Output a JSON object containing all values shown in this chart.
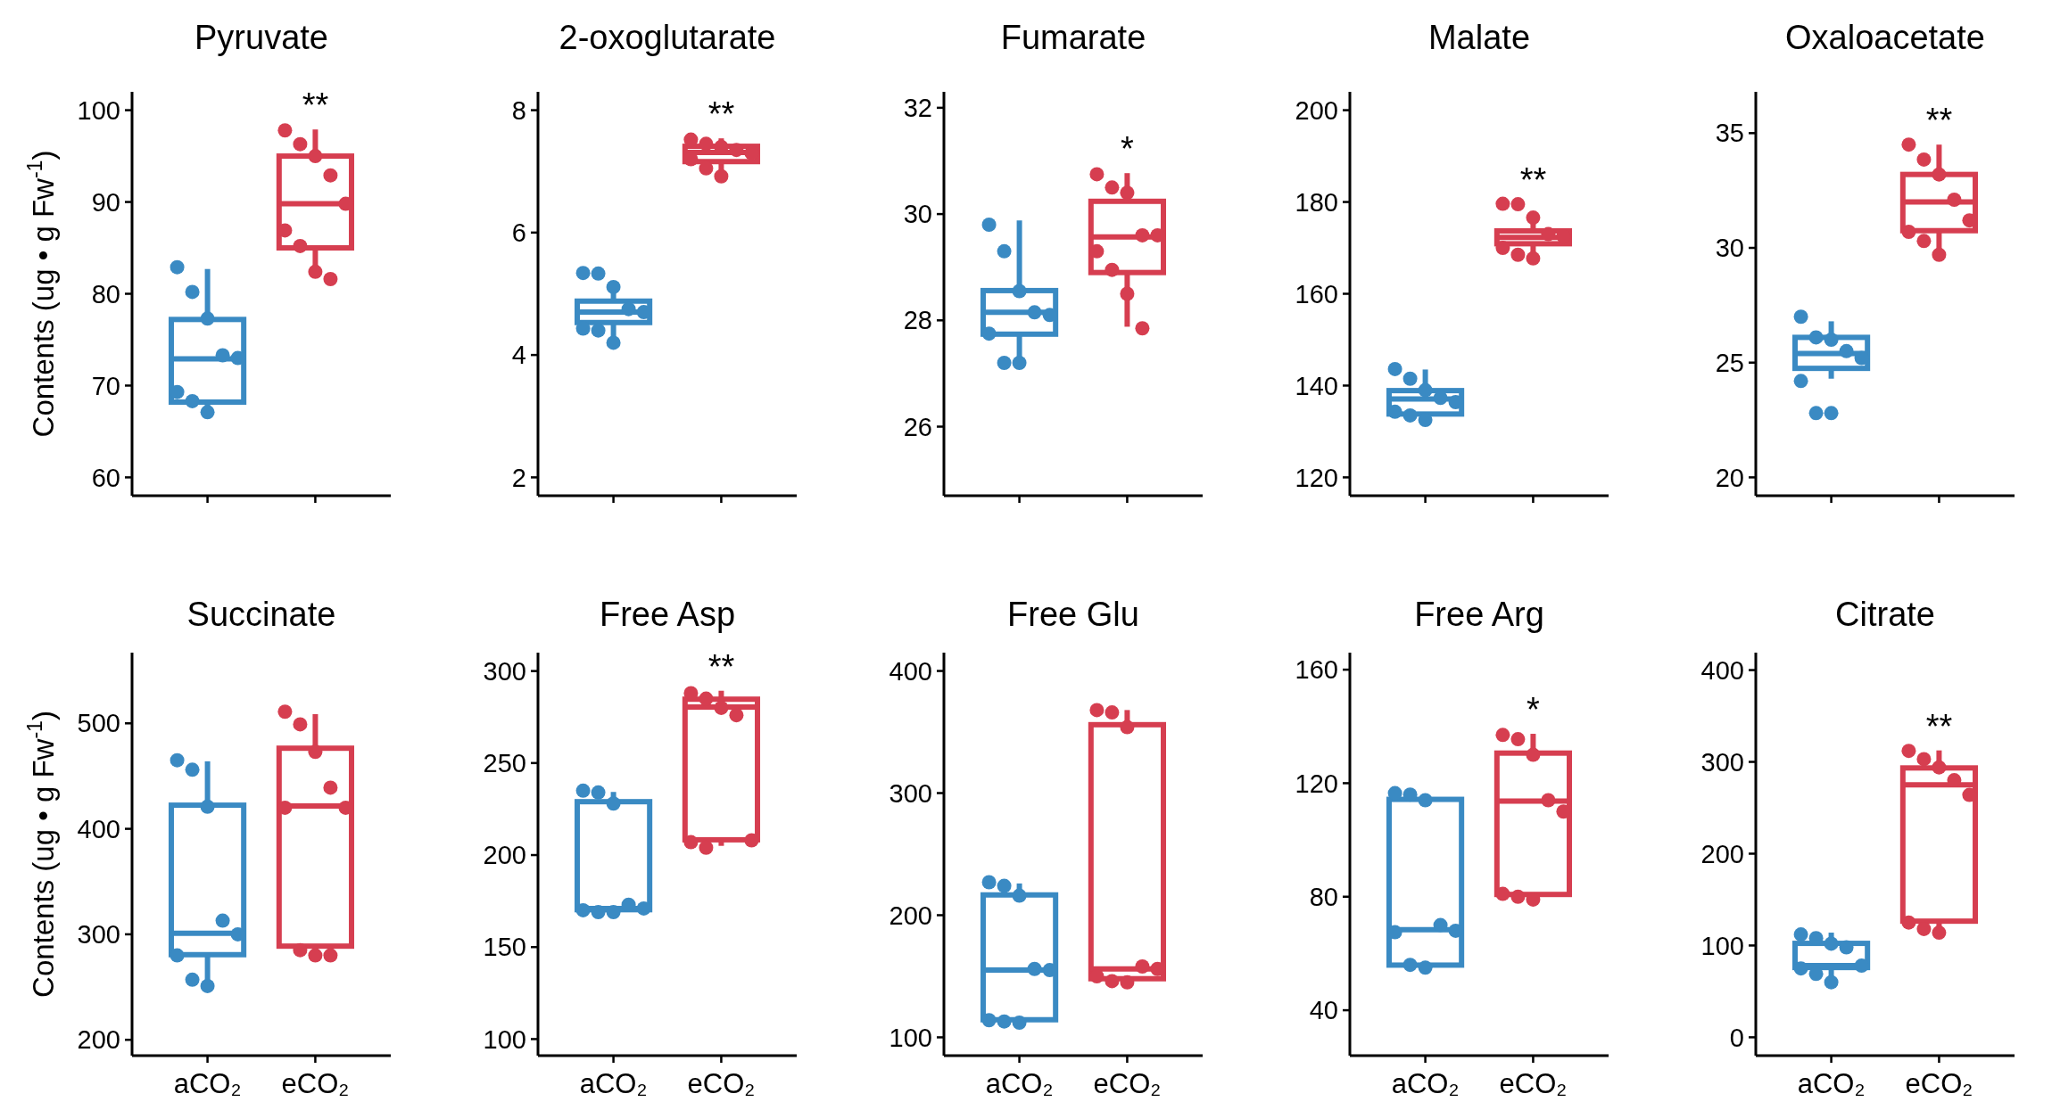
{
  "chart_data": [
    {
      "type": "box",
      "title": "Pyruvate",
      "ylabel": "Contents (ug • g Fw$^{-1}$)",
      "categories": [
        "aCO₂",
        "eCO₂"
      ],
      "colors": [
        "#3a8ac3",
        "#d63e50"
      ],
      "ylim": [
        58,
        102
      ],
      "yticks": [
        60,
        70,
        80,
        90,
        100
      ],
      "tick_labels": "y",
      "marker": "circle",
      "annotations": [
        "**"
      ],
      "boxes": [
        {
          "low": 67.1,
          "q1": 68.2,
          "median": 72.9,
          "q3": 77.2,
          "high": 82.7
        },
        {
          "low": 81.9,
          "q1": 85.0,
          "median": 89.8,
          "q3": 95.0,
          "high": 97.9
        }
      ],
      "series": [
        {
          "type": "scatter",
          "color": "#3a8ac3",
          "x": [
            "aCO₂",
            "aCO₂",
            "aCO₂",
            "aCO₂",
            "aCO₂",
            "aCO₂",
            "aCO₂",
            "aCO₂"
          ],
          "values": [
            82.9,
            80.2,
            77.3,
            73.3,
            73.0,
            69.3,
            68.3,
            67.1
          ]
        },
        {
          "type": "scatter",
          "color": "#d63e50",
          "x": [
            "eCO₂",
            "eCO₂",
            "eCO₂",
            "eCO₂",
            "eCO₂",
            "eCO₂",
            "eCO₂",
            "eCO₂",
            "eCO₂"
          ],
          "values": [
            97.8,
            96.3,
            95.0,
            92.9,
            89.8,
            86.9,
            85.2,
            82.4,
            81.6
          ]
        }
      ]
    },
    {
      "type": "box",
      "title": "2-oxoglutarate",
      "categories": [
        "aCO₂",
        "eCO₂"
      ],
      "colors": [
        "#3a8ac3",
        "#d63e50"
      ],
      "ylim": [
        1.7,
        8.3
      ],
      "yticks": [
        2,
        4,
        6,
        8
      ],
      "tick_labels": "y",
      "marker": "circle",
      "annotations": [
        "**"
      ],
      "boxes": [
        {
          "low": 4.24,
          "q1": 4.53,
          "median": 4.7,
          "q3": 4.88,
          "high": 5.07
        },
        {
          "low": 7.0,
          "q1": 7.16,
          "median": 7.31,
          "q3": 7.41,
          "high": 7.54
        }
      ],
      "series": [
        {
          "type": "scatter",
          "color": "#3a8ac3",
          "x": [
            "aCO₂",
            "aCO₂",
            "aCO₂",
            "aCO₂",
            "aCO₂",
            "aCO₂",
            "aCO₂",
            "aCO₂"
          ],
          "values": [
            5.34,
            5.33,
            5.11,
            4.75,
            4.7,
            4.43,
            4.4,
            4.2
          ]
        },
        {
          "type": "scatter",
          "color": "#d63e50",
          "x": [
            "eCO₂",
            "eCO₂",
            "eCO₂",
            "eCO₂",
            "eCO₂",
            "eCO₂",
            "eCO₂",
            "eCO₂"
          ],
          "values": [
            7.52,
            7.45,
            7.4,
            7.35,
            7.3,
            7.2,
            7.05,
            6.92
          ]
        }
      ]
    },
    {
      "type": "box",
      "title": "Fumarate",
      "categories": [
        "aCO₂",
        "eCO₂"
      ],
      "colors": [
        "#3a8ac3",
        "#d63e50"
      ],
      "ylim": [
        24.7,
        32.3
      ],
      "yticks": [
        26,
        28,
        30,
        32
      ],
      "tick_labels": "y",
      "marker": "circle",
      "annotations": [
        "*"
      ],
      "boxes": [
        {
          "low": 27.2,
          "q1": 27.74,
          "median": 28.15,
          "q3": 28.56,
          "high": 29.88
        },
        {
          "low": 27.88,
          "q1": 28.9,
          "median": 29.57,
          "q3": 30.24,
          "high": 30.77
        }
      ],
      "series": [
        {
          "type": "scatter",
          "color": "#3a8ac3",
          "x": [
            "aCO₂",
            "aCO₂",
            "aCO₂",
            "aCO₂",
            "aCO₂",
            "aCO₂",
            "aCO₂",
            "aCO₂"
          ],
          "values": [
            29.8,
            29.3,
            28.55,
            28.15,
            28.1,
            27.75,
            27.2,
            27.2
          ]
        },
        {
          "type": "scatter",
          "color": "#d63e50",
          "x": [
            "eCO₂",
            "eCO₂",
            "eCO₂",
            "eCO₂",
            "eCO₂",
            "eCO₂",
            "eCO₂",
            "eCO₂",
            "eCO₂"
          ],
          "values": [
            30.75,
            30.5,
            30.4,
            29.6,
            29.6,
            29.3,
            28.95,
            28.5,
            27.85
          ]
        }
      ]
    },
    {
      "type": "box",
      "title": "Malate",
      "categories": [
        "aCO₂",
        "eCO₂"
      ],
      "colors": [
        "#3a8ac3",
        "#d63e50"
      ],
      "ylim": [
        116,
        204
      ],
      "yticks": [
        120,
        140,
        160,
        180,
        200
      ],
      "tick_labels": "y",
      "marker": "circle",
      "annotations": [
        "**"
      ],
      "boxes": [
        {
          "low": 132.4,
          "q1": 133.8,
          "median": 137.1,
          "q3": 138.9,
          "high": 143.5
        },
        {
          "low": 167.6,
          "q1": 170.9,
          "median": 172.3,
          "q3": 173.7,
          "high": 176.1
        }
      ],
      "series": [
        {
          "type": "scatter",
          "color": "#3a8ac3",
          "x": [
            "aCO₂",
            "aCO₂",
            "aCO₂",
            "aCO₂",
            "aCO₂",
            "aCO₂",
            "aCO₂",
            "aCO₂"
          ],
          "values": [
            143.6,
            141.5,
            139.0,
            137.3,
            136.4,
            134.3,
            133.5,
            132.5
          ]
        },
        {
          "type": "scatter",
          "color": "#d63e50",
          "x": [
            "eCO₂",
            "eCO₂",
            "eCO₂",
            "eCO₂",
            "eCO₂",
            "eCO₂",
            "eCO₂",
            "eCO₂"
          ],
          "values": [
            179.6,
            179.5,
            176.6,
            173,
            172.5,
            170,
            168.5,
            167.7
          ]
        }
      ]
    },
    {
      "type": "box",
      "title": "Oxaloacetate",
      "categories": [
        "aCO₂",
        "eCO₂"
      ],
      "colors": [
        "#3a8ac3",
        "#d63e50"
      ],
      "ylim": [
        19.2,
        36.8
      ],
      "yticks": [
        20,
        25,
        30,
        35
      ],
      "tick_labels": "y",
      "marker": "circle",
      "annotations": [
        "**"
      ],
      "boxes": [
        {
          "low": 24.3,
          "q1": 24.75,
          "median": 25.4,
          "q3": 26.1,
          "high": 26.8
        },
        {
          "low": 29.6,
          "q1": 30.75,
          "median": 32.0,
          "q3": 33.2,
          "high": 34.5
        }
      ],
      "series": [
        {
          "type": "scatter",
          "color": "#3a8ac3",
          "x": [
            "aCO₂",
            "aCO₂",
            "aCO₂",
            "aCO₂",
            "aCO₂",
            "aCO₂",
            "aCO₂",
            "aCO₂"
          ],
          "values": [
            27.0,
            26.1,
            26.0,
            25.5,
            25.2,
            24.2,
            22.8,
            22.8
          ]
        },
        {
          "type": "scatter",
          "color": "#d63e50",
          "x": [
            "eCO₂",
            "eCO₂",
            "eCO₂",
            "eCO₂",
            "eCO₂",
            "eCO₂",
            "eCO₂",
            "eCO₂"
          ],
          "values": [
            34.5,
            33.85,
            33.2,
            32.1,
            31.2,
            30.7,
            30.3,
            29.7
          ]
        }
      ]
    },
    {
      "type": "box",
      "title": "Succinate",
      "ylabel": "Contents (ug • g Fw$^{-1}$)",
      "categories": [
        "aCO₂",
        "eCO₂"
      ],
      "colors": [
        "#3a8ac3",
        "#d63e50"
      ],
      "ylim": [
        185,
        567
      ],
      "yticks": [
        200,
        300,
        400,
        500
      ],
      "marker": "circle",
      "boxes": [
        {
          "low": 251.6,
          "q1": 280.7,
          "median": 301,
          "q3": 422.4,
          "high": 464
        },
        {
          "low": 280.7,
          "q1": 288.8,
          "median": 421.7,
          "q3": 476.4,
          "high": 508.7
        }
      ],
      "series": [
        {
          "type": "scatter",
          "color": "#3a8ac3",
          "x": [
            "aCO₂",
            "aCO₂",
            "aCO₂",
            "aCO₂",
            "aCO₂",
            "aCO₂",
            "aCO₂",
            "aCO₂"
          ],
          "values": [
            465,
            456,
            421,
            313,
            300,
            280,
            257,
            251
          ]
        },
        {
          "type": "scatter",
          "color": "#d63e50",
          "x": [
            "eCO₂",
            "eCO₂",
            "eCO₂",
            "eCO₂",
            "eCO₂",
            "eCO₂",
            "eCO₂",
            "eCO₂",
            "eCO₂"
          ],
          "values": [
            511,
            499,
            473,
            439,
            420,
            420,
            285,
            280,
            280
          ]
        }
      ]
    },
    {
      "type": "box",
      "title": "Free Asp",
      "categories": [
        "aCO₂",
        "eCO₂"
      ],
      "colors": [
        "#3a8ac3",
        "#d63e50"
      ],
      "ylim": [
        91,
        310
      ],
      "yticks": [
        100,
        150,
        200,
        250,
        300
      ],
      "marker": "circle",
      "annotations": [
        "**"
      ],
      "boxes": [
        {
          "low": 170,
          "q1": 170.3,
          "median": 171,
          "q3": 229,
          "high": 234.3
        },
        {
          "low": 205,
          "q1": 208.3,
          "median": 280.5,
          "q3": 284.7,
          "high": 289.3
        }
      ],
      "series": [
        {
          "type": "scatter",
          "color": "#3a8ac3",
          "x": [
            "aCO₂",
            "aCO₂",
            "aCO₂",
            "aCO₂",
            "aCO₂",
            "aCO₂",
            "aCO₂",
            "aCO₂"
          ],
          "values": [
            235,
            234,
            228,
            173,
            171,
            170,
            169,
            169
          ]
        },
        {
          "type": "scatter",
          "color": "#d63e50",
          "x": [
            "eCO₂",
            "eCO₂",
            "eCO₂",
            "eCO₂",
            "eCO₂",
            "eCO₂",
            "eCO₂"
          ],
          "values": [
            288,
            285,
            280,
            276,
            208,
            207,
            204
          ]
        }
      ]
    },
    {
      "type": "box",
      "title": "Free Glu",
      "categories": [
        "aCO₂",
        "eCO₂"
      ],
      "colors": [
        "#3a8ac3",
        "#d63e50"
      ],
      "ylim": [
        85,
        415
      ],
      "yticks": [
        100,
        200,
        300,
        400
      ],
      "marker": "circle",
      "boxes": [
        {
          "low": 114,
          "q1": 114.4,
          "median": 155,
          "q3": 216.6,
          "high": 226
        },
        {
          "low": 148,
          "q1": 148,
          "median": 156,
          "q3": 356,
          "high": 368
        }
      ],
      "series": [
        {
          "type": "scatter",
          "color": "#3a8ac3",
          "x": [
            "aCO₂",
            "aCO₂",
            "aCO₂",
            "aCO₂",
            "aCO₂",
            "aCO₂",
            "aCO₂",
            "aCO₂"
          ],
          "values": [
            227,
            224,
            216,
            156,
            155,
            114,
            113,
            112
          ]
        },
        {
          "type": "scatter",
          "color": "#d63e50",
          "x": [
            "eCO₂",
            "eCO₂",
            "eCO₂",
            "eCO₂",
            "eCO₂",
            "eCO₂",
            "eCO₂",
            "eCO₂"
          ],
          "values": [
            368,
            366,
            354,
            158,
            156,
            150,
            146,
            145
          ]
        }
      ]
    },
    {
      "type": "box",
      "title": "Free Arg",
      "categories": [
        "aCO₂",
        "eCO₂"
      ],
      "colors": [
        "#3a8ac3",
        "#d63e50"
      ],
      "ylim": [
        24,
        166
      ],
      "yticks": [
        40,
        80,
        120,
        160
      ],
      "marker": "circle",
      "annotations": [
        "*"
      ],
      "boxes": [
        {
          "low": 55.9,
          "q1": 55.9,
          "median": 68.4,
          "q3": 114.3,
          "high": 116
        },
        {
          "low": 80,
          "q1": 80.8,
          "median": 113.7,
          "q3": 130.6,
          "high": 137.4
        }
      ],
      "series": [
        {
          "type": "scatter",
          "color": "#3a8ac3",
          "x": [
            "aCO₂",
            "aCO₂",
            "aCO₂",
            "aCO₂",
            "aCO₂",
            "aCO₂",
            "aCO₂",
            "aCO₂"
          ],
          "values": [
            116.5,
            116,
            114,
            70,
            68,
            67.5,
            56,
            55
          ]
        },
        {
          "type": "scatter",
          "color": "#d63e50",
          "x": [
            "eCO₂",
            "eCO₂",
            "eCO₂",
            "eCO₂",
            "eCO₂",
            "eCO₂",
            "eCO₂",
            "eCO₂"
          ],
          "values": [
            137,
            135.5,
            130,
            114,
            110,
            81,
            80,
            79
          ]
        }
      ]
    },
    {
      "type": "box",
      "title": "Citrate",
      "categories": [
        "aCO₂",
        "eCO₂"
      ],
      "colors": [
        "#3a8ac3",
        "#d63e50"
      ],
      "ylim": [
        -20,
        419
      ],
      "yticks": [
        0,
        100,
        200,
        300,
        400
      ],
      "marker": "circle",
      "annotations": [
        "**"
      ],
      "boxes": [
        {
          "low": 60,
          "q1": 76,
          "median": 78,
          "q3": 102.3,
          "high": 114
        },
        {
          "low": 117,
          "q1": 126.5,
          "median": 275,
          "q3": 293.4,
          "high": 312.5
        }
      ],
      "series": [
        {
          "type": "scatter",
          "color": "#3a8ac3",
          "x": [
            "aCO₂",
            "aCO₂",
            "aCO₂",
            "aCO₂",
            "aCO₂",
            "aCO₂",
            "aCO₂",
            "aCO₂"
          ],
          "values": [
            112,
            108,
            102,
            98,
            78,
            75,
            69,
            60
          ]
        },
        {
          "type": "scatter",
          "color": "#d63e50",
          "x": [
            "eCO₂",
            "eCO₂",
            "eCO₂",
            "eCO₂",
            "eCO₂",
            "eCO₂",
            "eCO₂",
            "eCO₂"
          ],
          "values": [
            312,
            303,
            294,
            280,
            264,
            125,
            118,
            114
          ]
        }
      ]
    }
  ]
}
